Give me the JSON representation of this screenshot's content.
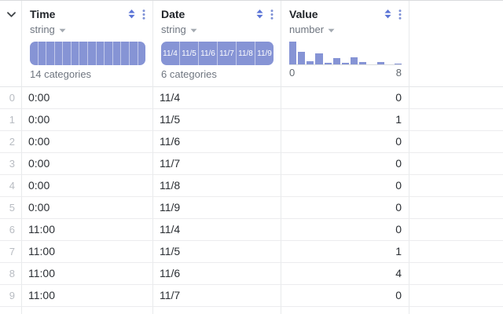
{
  "icons": {
    "corner": "chevron-down",
    "sort": "sort-arrows",
    "menu": "kebab-vertical",
    "type_caret": "caret-down"
  },
  "colors": {
    "histogram_bar": "#8694d5",
    "sort_icon": "#5b74d6",
    "menu_icon": "#7e91d6",
    "caret": "#a4aab1",
    "chevron": "#3e4347"
  },
  "columns": [
    {
      "name": "Time",
      "type": "string",
      "summary": {
        "kind": "categories",
        "segment_count": 14,
        "segment_labels": [],
        "count_label": "14 categories"
      }
    },
    {
      "name": "Date",
      "type": "string",
      "summary": {
        "kind": "categories",
        "segment_count": 6,
        "segment_labels": [
          "11/4",
          "11/5",
          "11/6",
          "11/7",
          "11/8",
          "11/9"
        ],
        "count_label": "6 categories"
      }
    },
    {
      "name": "Value",
      "type": "number",
      "summary": {
        "kind": "histogram",
        "axis_min": "0",
        "axis_max": "8",
        "bins": [
          1,
          0.55,
          0.13,
          0.5,
          0.07,
          0.27,
          0.07,
          0.3,
          0.11,
          0,
          0.11,
          0,
          0.04
        ]
      }
    }
  ],
  "rows": [
    {
      "index": "0",
      "time": "0:00",
      "date": "11/4",
      "value": "0"
    },
    {
      "index": "1",
      "time": "0:00",
      "date": "11/5",
      "value": "1"
    },
    {
      "index": "2",
      "time": "0:00",
      "date": "11/6",
      "value": "0"
    },
    {
      "index": "3",
      "time": "0:00",
      "date": "11/7",
      "value": "0"
    },
    {
      "index": "4",
      "time": "0:00",
      "date": "11/8",
      "value": "0"
    },
    {
      "index": "5",
      "time": "0:00",
      "date": "11/9",
      "value": "0"
    },
    {
      "index": "6",
      "time": "11:00",
      "date": "11/4",
      "value": "0"
    },
    {
      "index": "7",
      "time": "11:00",
      "date": "11/5",
      "value": "1"
    },
    {
      "index": "8",
      "time": "11:00",
      "date": "11/6",
      "value": "4"
    },
    {
      "index": "9",
      "time": "11:00",
      "date": "11/7",
      "value": "0"
    }
  ]
}
